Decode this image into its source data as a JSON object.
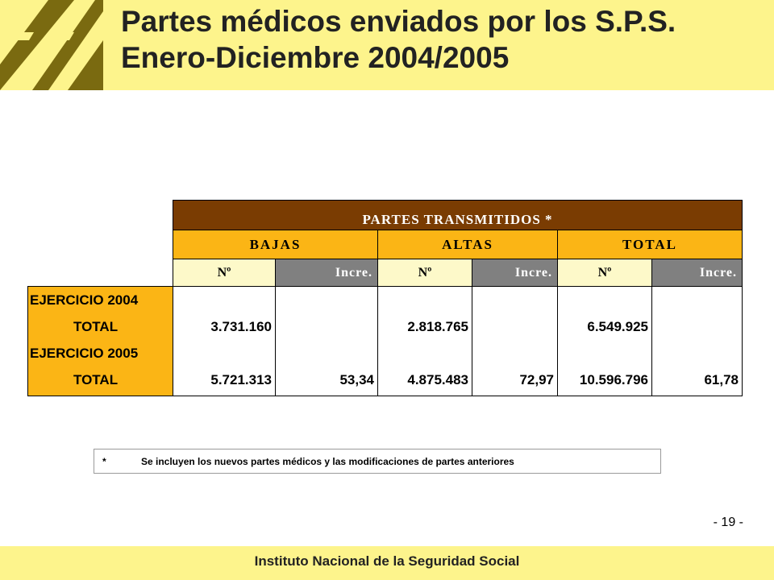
{
  "header": {
    "title_line1": "Partes médicos enviados por los S.P.S.",
    "title_line2": "Enero-Diciembre 2004/2005",
    "background_color": "#fdf48c",
    "logo_color": "#7a6a10"
  },
  "table": {
    "main_header": "PARTES TRANSMITIDOS *",
    "groups": [
      "BAJAS",
      "ALTAS",
      "TOTAL"
    ],
    "subheaders": [
      "Nº",
      "Incre.",
      "Nº",
      "Incre.",
      "Nº",
      "Incre."
    ],
    "rows": [
      {
        "year_label": "EJERCICIO 2004",
        "total_label": "TOTAL",
        "bajas_n": "3.731.160",
        "bajas_incre": "",
        "altas_n": "2.818.765",
        "altas_incre": "",
        "total_n": "6.549.925",
        "total_incre": ""
      },
      {
        "year_label": "EJERCICIO 2005",
        "total_label": "TOTAL",
        "bajas_n": "5.721.313",
        "bajas_incre": "53,34",
        "altas_n": "4.875.483",
        "altas_incre": "72,97",
        "total_n": "10.596.796",
        "total_incre": "61,78"
      }
    ],
    "colors": {
      "main_header_bg": "#7a3c02",
      "group_header_bg": "#fbb515",
      "n_header_bg": "#fdf9c9",
      "incre_header_bg": "#808080"
    }
  },
  "footnote": {
    "marker": "*",
    "text": "Se incluyen los nuevos partes médicos y las modificaciones de partes anteriores"
  },
  "page_number": "- 19 -",
  "footer": {
    "institution": "Instituto Nacional de la Seguridad Social"
  }
}
